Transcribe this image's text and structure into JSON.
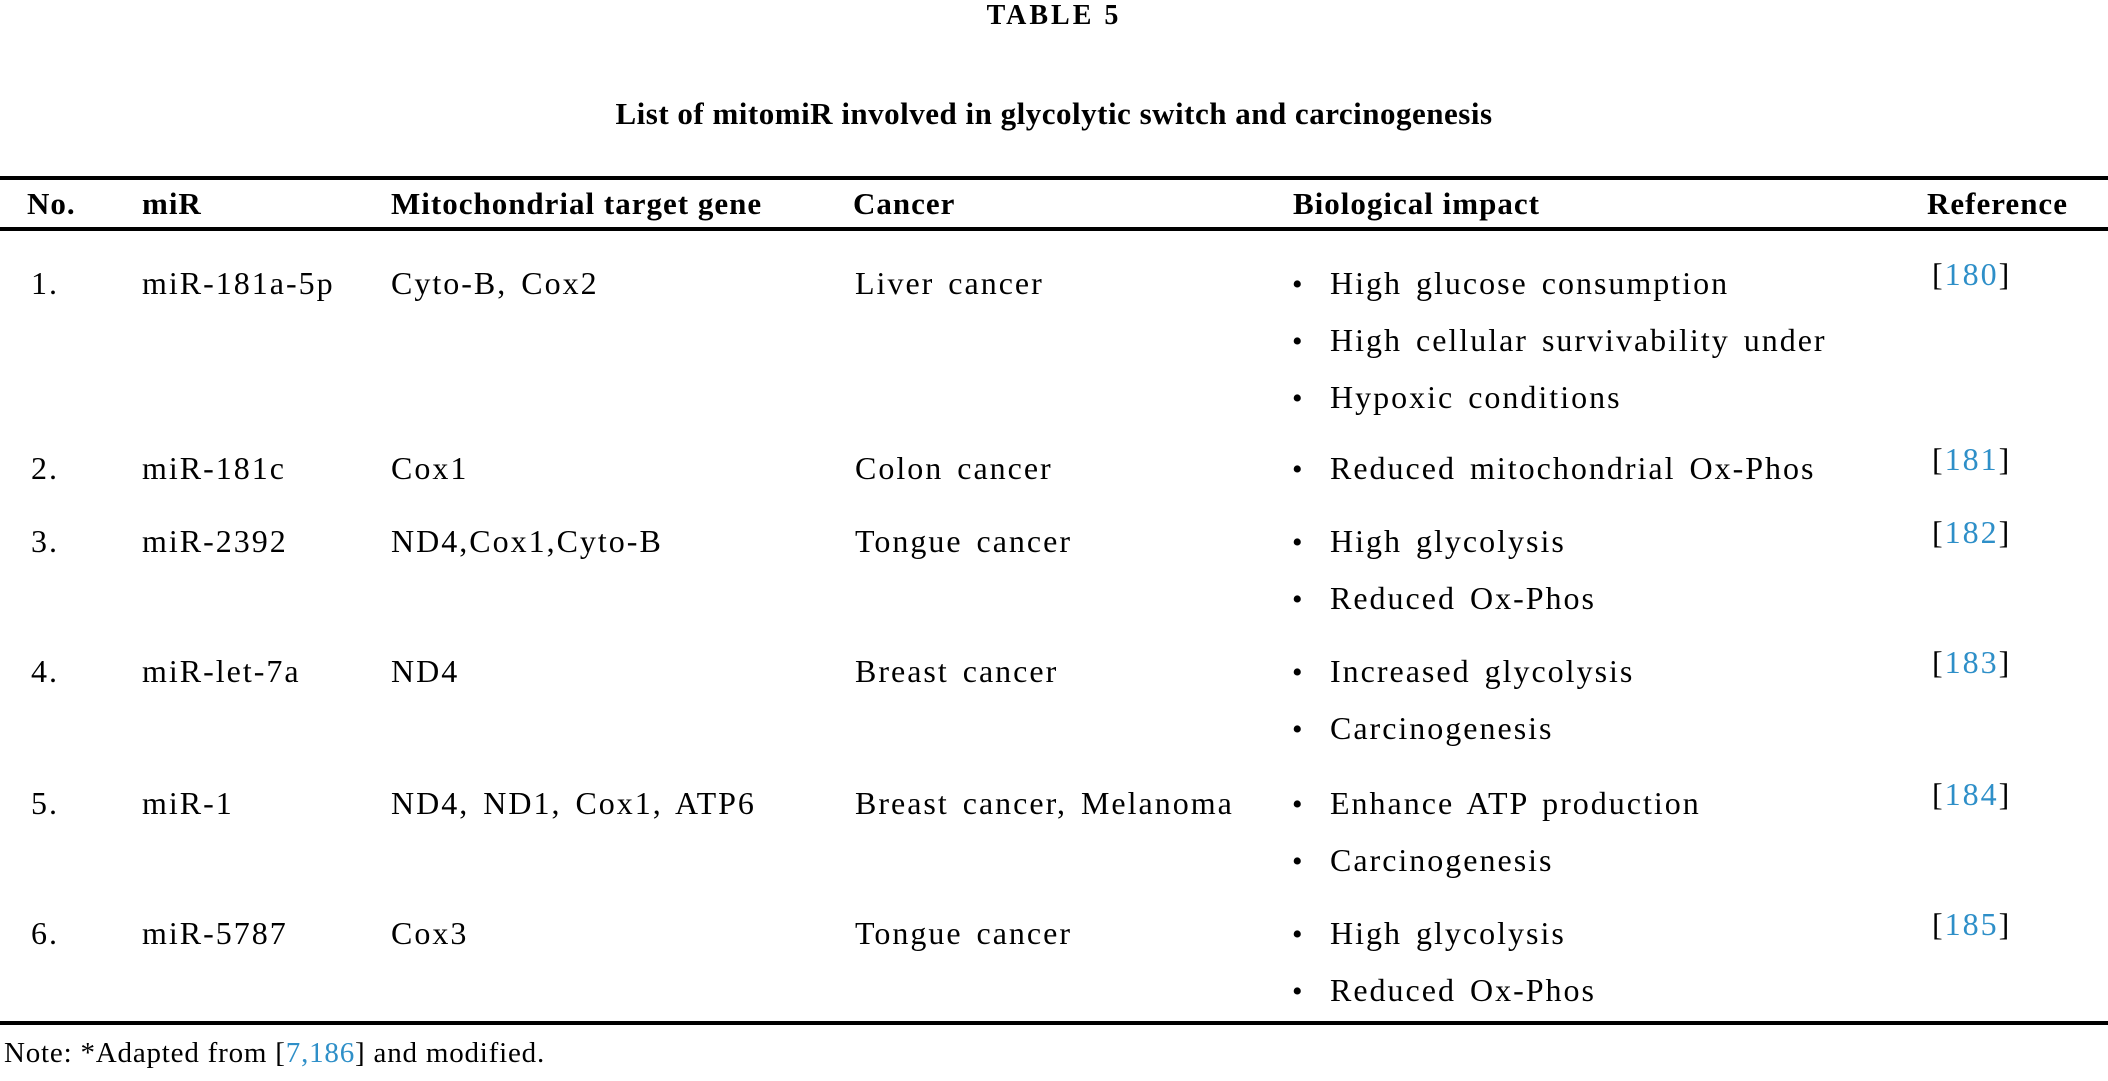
{
  "page": {
    "title": "TABLE 5",
    "subtitle": "List of mitomiR involved in glycolytic switch and carcinogenesis"
  },
  "table": {
    "columns": [
      "No.",
      "miR",
      "Mitochondrial target gene",
      "Cancer",
      "Biological impact",
      "Reference"
    ],
    "bullet_glyph": "•",
    "reference_brackets": {
      "open": "[",
      "close": "]"
    },
    "rows": [
      {
        "no": "1.",
        "mir": "miR-181a-5p",
        "target_gene": "Cyto-B, Cox2",
        "cancer": "Liver cancer",
        "impacts": [
          "High glucose consumption",
          "High cellular survivability under",
          "Hypoxic conditions"
        ],
        "reference": "180"
      },
      {
        "no": "2.",
        "mir": "miR-181c",
        "target_gene": "Cox1",
        "cancer": "Colon cancer",
        "impacts": [
          "Reduced mitochondrial Ox-Phos"
        ],
        "reference": "181"
      },
      {
        "no": "3.",
        "mir": "miR-2392",
        "target_gene": "ND4,Cox1,Cyto-B",
        "cancer": "Tongue cancer",
        "impacts": [
          "High glycolysis",
          "Reduced Ox-Phos"
        ],
        "reference": "182"
      },
      {
        "no": "4.",
        "mir": "miR-let-7a",
        "target_gene": "ND4",
        "cancer": "Breast cancer",
        "impacts": [
          "Increased glycolysis",
          "Carcinogenesis"
        ],
        "reference": "183"
      },
      {
        "no": "5.",
        "mir": "miR-1",
        "target_gene": "ND4, ND1, Cox1, ATP6",
        "cancer": "Breast cancer, Melanoma",
        "impacts": [
          "Enhance ATP production",
          "Carcinogenesis"
        ],
        "reference": "184"
      },
      {
        "no": "6.",
        "mir": "miR-5787",
        "target_gene": "Cox3",
        "cancer": "Tongue cancer",
        "impacts": [
          "High glycolysis",
          "Reduced Ox-Phos"
        ],
        "reference": "185"
      }
    ]
  },
  "note": {
    "prefix": "Note: *Adapted from [",
    "reference_links": "7,186",
    "suffix": "] and modified."
  },
  "colors": {
    "reference_link": "#2e8fc8",
    "text": "#000000",
    "background": "#ffffff"
  }
}
